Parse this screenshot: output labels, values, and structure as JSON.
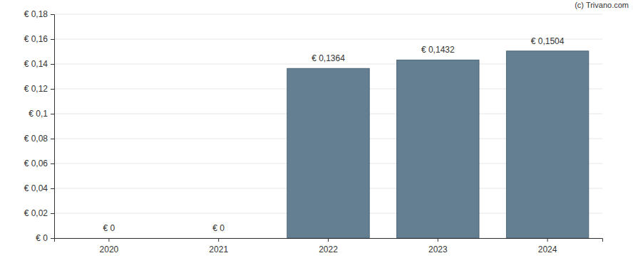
{
  "chart_data": {
    "type": "bar",
    "categories": [
      "2020",
      "2021",
      "2022",
      "2023",
      "2024"
    ],
    "values": [
      0,
      0,
      0.1364,
      0.1432,
      0.1504
    ],
    "value_labels": [
      "€ 0",
      "€ 0",
      "€ 0,1364",
      "€ 0,1432",
      "€ 0,1504"
    ],
    "data_labels": true,
    "color": "#647f92",
    "ylim": [
      0,
      0.18
    ],
    "yticks": [
      {
        "value": 0,
        "label": "€ 0"
      },
      {
        "value": 0.02,
        "label": "€ 0,02"
      },
      {
        "value": 0.04,
        "label": "€ 0,04"
      },
      {
        "value": 0.06,
        "label": "€ 0,06"
      },
      {
        "value": 0.08,
        "label": "€ 0,08"
      },
      {
        "value": 0.1,
        "label": "€ 0,1"
      },
      {
        "value": 0.12,
        "label": "€ 0,12"
      },
      {
        "value": 0.14,
        "label": "€ 0,14"
      },
      {
        "value": 0.16,
        "label": "€ 0,16"
      },
      {
        "value": 0.18,
        "label": "€ 0,18"
      }
    ],
    "grid": true,
    "annotations": [
      "(c) Trivano.com"
    ]
  }
}
